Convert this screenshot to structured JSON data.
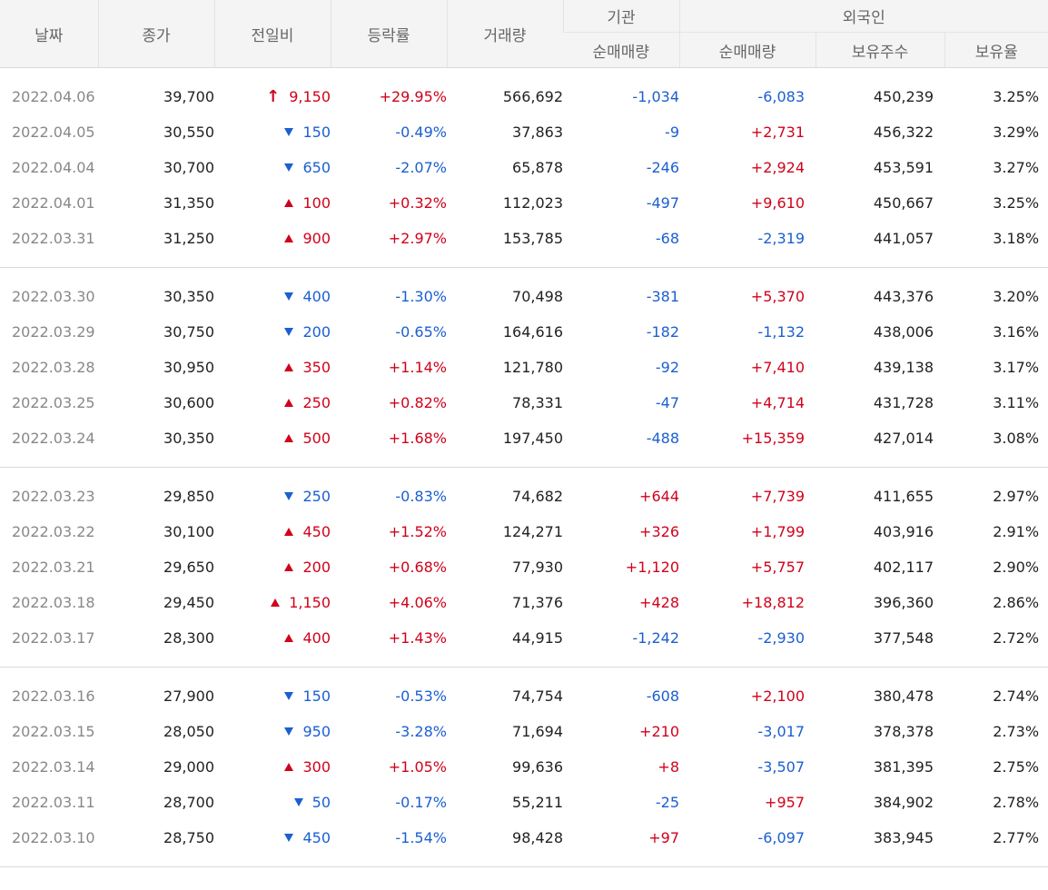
{
  "headers": {
    "date": "날짜",
    "close": "종가",
    "change": "전일비",
    "rate": "등락률",
    "volume": "거래량",
    "institution": "기관",
    "inst_net": "순매매량",
    "foreign": "외국인",
    "foreign_net": "순매매량",
    "foreign_shares": "보유주수",
    "foreign_ratio": "보유율"
  },
  "colors": {
    "up": "#d0021b",
    "down": "#1b5fd1",
    "header_bg": "#f4f4f4"
  },
  "groups": [
    [
      {
        "date": "2022.04.06",
        "close": "39,700",
        "dir": "limit-up",
        "change": "9,150",
        "rate": "+29.95%",
        "volume": "566,692",
        "inst": "-1,034",
        "frgn": "-6,083",
        "shares": "450,239",
        "ratio": "3.25%"
      },
      {
        "date": "2022.04.05",
        "close": "30,550",
        "dir": "down",
        "change": "150",
        "rate": "-0.49%",
        "volume": "37,863",
        "inst": "-9",
        "frgn": "+2,731",
        "shares": "456,322",
        "ratio": "3.29%"
      },
      {
        "date": "2022.04.04",
        "close": "30,700",
        "dir": "down",
        "change": "650",
        "rate": "-2.07%",
        "volume": "65,878",
        "inst": "-246",
        "frgn": "+2,924",
        "shares": "453,591",
        "ratio": "3.27%"
      },
      {
        "date": "2022.04.01",
        "close": "31,350",
        "dir": "up",
        "change": "100",
        "rate": "+0.32%",
        "volume": "112,023",
        "inst": "-497",
        "frgn": "+9,610",
        "shares": "450,667",
        "ratio": "3.25%"
      },
      {
        "date": "2022.03.31",
        "close": "31,250",
        "dir": "up",
        "change": "900",
        "rate": "+2.97%",
        "volume": "153,785",
        "inst": "-68",
        "frgn": "-2,319",
        "shares": "441,057",
        "ratio": "3.18%"
      }
    ],
    [
      {
        "date": "2022.03.30",
        "close": "30,350",
        "dir": "down",
        "change": "400",
        "rate": "-1.30%",
        "volume": "70,498",
        "inst": "-381",
        "frgn": "+5,370",
        "shares": "443,376",
        "ratio": "3.20%"
      },
      {
        "date": "2022.03.29",
        "close": "30,750",
        "dir": "down",
        "change": "200",
        "rate": "-0.65%",
        "volume": "164,616",
        "inst": "-182",
        "frgn": "-1,132",
        "shares": "438,006",
        "ratio": "3.16%"
      },
      {
        "date": "2022.03.28",
        "close": "30,950",
        "dir": "up",
        "change": "350",
        "rate": "+1.14%",
        "volume": "121,780",
        "inst": "-92",
        "frgn": "+7,410",
        "shares": "439,138",
        "ratio": "3.17%"
      },
      {
        "date": "2022.03.25",
        "close": "30,600",
        "dir": "up",
        "change": "250",
        "rate": "+0.82%",
        "volume": "78,331",
        "inst": "-47",
        "frgn": "+4,714",
        "shares": "431,728",
        "ratio": "3.11%"
      },
      {
        "date": "2022.03.24",
        "close": "30,350",
        "dir": "up",
        "change": "500",
        "rate": "+1.68%",
        "volume": "197,450",
        "inst": "-488",
        "frgn": "+15,359",
        "shares": "427,014",
        "ratio": "3.08%"
      }
    ],
    [
      {
        "date": "2022.03.23",
        "close": "29,850",
        "dir": "down",
        "change": "250",
        "rate": "-0.83%",
        "volume": "74,682",
        "inst": "+644",
        "frgn": "+7,739",
        "shares": "411,655",
        "ratio": "2.97%"
      },
      {
        "date": "2022.03.22",
        "close": "30,100",
        "dir": "up",
        "change": "450",
        "rate": "+1.52%",
        "volume": "124,271",
        "inst": "+326",
        "frgn": "+1,799",
        "shares": "403,916",
        "ratio": "2.91%"
      },
      {
        "date": "2022.03.21",
        "close": "29,650",
        "dir": "up",
        "change": "200",
        "rate": "+0.68%",
        "volume": "77,930",
        "inst": "+1,120",
        "frgn": "+5,757",
        "shares": "402,117",
        "ratio": "2.90%"
      },
      {
        "date": "2022.03.18",
        "close": "29,450",
        "dir": "up",
        "change": "1,150",
        "rate": "+4.06%",
        "volume": "71,376",
        "inst": "+428",
        "frgn": "+18,812",
        "shares": "396,360",
        "ratio": "2.86%"
      },
      {
        "date": "2022.03.17",
        "close": "28,300",
        "dir": "up",
        "change": "400",
        "rate": "+1.43%",
        "volume": "44,915",
        "inst": "-1,242",
        "frgn": "-2,930",
        "shares": "377,548",
        "ratio": "2.72%"
      }
    ],
    [
      {
        "date": "2022.03.16",
        "close": "27,900",
        "dir": "down",
        "change": "150",
        "rate": "-0.53%",
        "volume": "74,754",
        "inst": "-608",
        "frgn": "+2,100",
        "shares": "380,478",
        "ratio": "2.74%"
      },
      {
        "date": "2022.03.15",
        "close": "28,050",
        "dir": "down",
        "change": "950",
        "rate": "-3.28%",
        "volume": "71,694",
        "inst": "+210",
        "frgn": "-3,017",
        "shares": "378,378",
        "ratio": "2.73%"
      },
      {
        "date": "2022.03.14",
        "close": "29,000",
        "dir": "up",
        "change": "300",
        "rate": "+1.05%",
        "volume": "99,636",
        "inst": "+8",
        "frgn": "-3,507",
        "shares": "381,395",
        "ratio": "2.75%"
      },
      {
        "date": "2022.03.11",
        "close": "28,700",
        "dir": "down",
        "change": "50",
        "rate": "-0.17%",
        "volume": "55,211",
        "inst": "-25",
        "frgn": "+957",
        "shares": "384,902",
        "ratio": "2.78%"
      },
      {
        "date": "2022.03.10",
        "close": "28,750",
        "dir": "down",
        "change": "450",
        "rate": "-1.54%",
        "volume": "98,428",
        "inst": "+97",
        "frgn": "-6,097",
        "shares": "383,945",
        "ratio": "2.77%"
      }
    ]
  ]
}
